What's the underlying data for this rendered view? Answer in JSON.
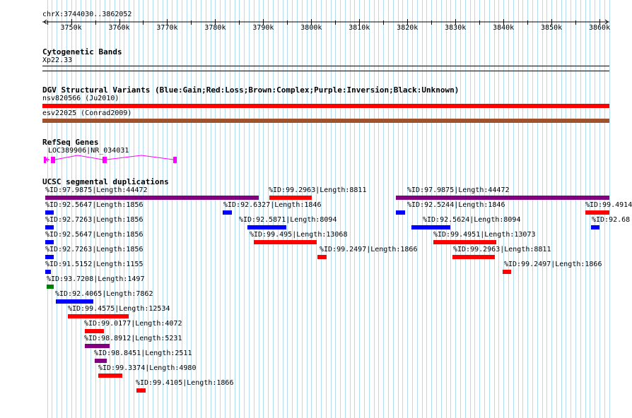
{
  "colors": {
    "gain": "#0000ff",
    "loss": "#ff0000",
    "complex": "#a0522d",
    "inversion": "#800080",
    "green": "#008000",
    "gene": "#ff00ff",
    "grid": "#b4dcf0"
  },
  "ruler": {
    "coords": "chrX:3744030..3862052",
    "ticks": [
      "3750k",
      "3760k",
      "3770k",
      "3780k",
      "3790k",
      "3800k",
      "3810k",
      "3820k",
      "3830k",
      "3840k",
      "3850k",
      "3860k"
    ],
    "start": 3744030,
    "end": 3862052
  },
  "tracks": {
    "cyto": {
      "title": "Cytogenetic Bands",
      "band": "Xp22.33"
    },
    "dgv": {
      "title": "DGV Structural Variants (Blue:Gain;Red:Loss;Brown:Complex;Purple:Inversion;Black:Unknown)",
      "items": [
        {
          "label": "nsv820566 (Ju2010)",
          "type": "loss"
        },
        {
          "label": "esv22025 (Conrad2009)",
          "type": "complex"
        }
      ]
    },
    "refseq": {
      "title": "RefSeq Genes",
      "gene_label": "LOC389906|NR_034031"
    },
    "segdup": {
      "title": "UCSC segmental duplications",
      "items": [
        {
          "label": "%ID:97.9875|Length:44472",
          "start": 3744600,
          "end": 3789080,
          "type": "inversion"
        },
        {
          "label": "%ID:99.2963|Length:8811",
          "start": 3791280,
          "end": 3800100,
          "type": "loss"
        },
        {
          "label": "%ID:97.9875|Length:44472",
          "start": 3817580,
          "end": 3862052,
          "type": "inversion"
        },
        {
          "label": "%ID:92.5647|Length:1856",
          "start": 3744600,
          "end": 3746450,
          "type": "gain"
        },
        {
          "label": "%ID:92.6327|Length:1846",
          "start": 3781600,
          "end": 3783450,
          "type": "gain"
        },
        {
          "label": "%ID:92.5244|Length:1846",
          "start": 3817660,
          "end": 3819500,
          "type": "gain"
        },
        {
          "label": "%ID:99.4914",
          "start": 3857000,
          "end": 3862052,
          "type": "loss"
        },
        {
          "label": "%ID:92.7263|Length:1856",
          "start": 3744600,
          "end": 3746450,
          "type": "gain"
        },
        {
          "label": "%ID:92.5871|Length:8094",
          "start": 3786650,
          "end": 3794750,
          "type": "gain"
        },
        {
          "label": "%ID:92.5624|Length:8094",
          "start": 3820900,
          "end": 3829000,
          "type": "gain"
        },
        {
          "label": "%ID:92.68",
          "start": 3858200,
          "end": 3860050,
          "type": "gain"
        },
        {
          "label": "%ID:92.5647|Length:1856",
          "start": 3744600,
          "end": 3746450,
          "type": "gain"
        },
        {
          "label": "%ID:99.495|Length:13068",
          "start": 3788100,
          "end": 3801170,
          "type": "loss"
        },
        {
          "label": "%ID:99.4951|Length:13073",
          "start": 3825400,
          "end": 3838470,
          "type": "loss"
        },
        {
          "label": "%ID:92.7263|Length:1856",
          "start": 3744600,
          "end": 3746450,
          "type": "gain"
        },
        {
          "label": "%ID:99.2497|Length:1866",
          "start": 3801300,
          "end": 3803170,
          "type": "loss"
        },
        {
          "label": "%ID:99.2963|Length:8811",
          "start": 3829400,
          "end": 3838200,
          "type": "loss"
        },
        {
          "label": "%ID:91.5152|Length:1155",
          "start": 3744600,
          "end": 3745760,
          "type": "gain"
        },
        {
          "label": "%ID:99.2497|Length:1866",
          "start": 3839800,
          "end": 3841670,
          "type": "loss"
        },
        {
          "label": "%ID:93.7208|Length:1497",
          "start": 3744900,
          "end": 3746400,
          "type": "green"
        },
        {
          "label": "%ID:92.4065|Length:7862",
          "start": 3746800,
          "end": 3754660,
          "type": "gain"
        },
        {
          "label": "%ID:99.4575|Length:12534",
          "start": 3749400,
          "end": 3761930,
          "type": "loss"
        },
        {
          "label": "%ID:99.0177|Length:4072",
          "start": 3752800,
          "end": 3756870,
          "type": "loss"
        },
        {
          "label": "%ID:98.8912|Length:5231",
          "start": 3752800,
          "end": 3758030,
          "type": "inversion"
        },
        {
          "label": "%ID:98.8451|Length:2511",
          "start": 3754900,
          "end": 3757410,
          "type": "inversion"
        },
        {
          "label": "%ID:99.3374|Length:4980",
          "start": 3755700,
          "end": 3760680,
          "type": "loss"
        },
        {
          "label": "%ID:99.4105|Length:1866",
          "start": 3763600,
          "end": 3765470,
          "type": "loss"
        }
      ]
    }
  }
}
